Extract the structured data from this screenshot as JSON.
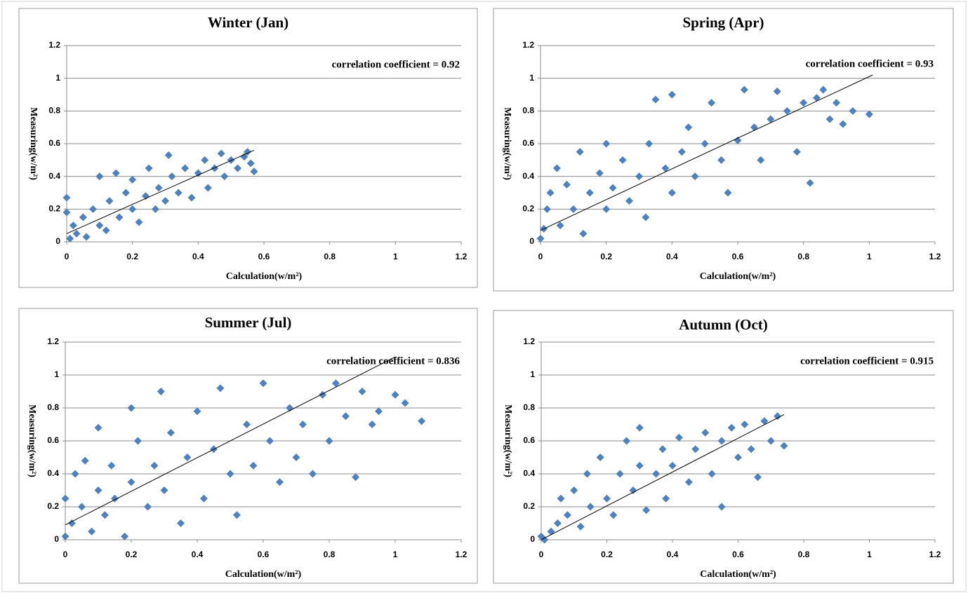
{
  "chart_data": [
    {
      "type": "scatter",
      "title": "Winter (Jan)",
      "xlabel": "Calculation(w/m²)",
      "ylabel": "Measuring(w/m²)",
      "annotation": "correlation coefficient = 0.92",
      "xlim": [
        0,
        1.2
      ],
      "ylim": [
        0,
        1.2
      ],
      "xticks": [
        0,
        0.2,
        0.4,
        0.6,
        0.8,
        1,
        1.2
      ],
      "yticks": [
        0,
        0.2,
        0.4,
        0.6,
        0.8,
        1,
        1.2
      ],
      "grid": true,
      "series": [
        {
          "color": "#4f81bd",
          "x": [
            0,
            0,
            0.01,
            0.02,
            0.03,
            0.05,
            0.06,
            0.08,
            0.1,
            0.1,
            0.12,
            0.13,
            0.15,
            0.16,
            0.18,
            0.2,
            0.2,
            0.22,
            0.24,
            0.25,
            0.27,
            0.28,
            0.3,
            0.31,
            0.32,
            0.34,
            0.36,
            0.38,
            0.4,
            0.42,
            0.43,
            0.45,
            0.47,
            0.48,
            0.5,
            0.52,
            0.54,
            0.56,
            0.57,
            0.55
          ],
          "values": [
            0.27,
            0.18,
            0.02,
            0.1,
            0.05,
            0.15,
            0.03,
            0.2,
            0.1,
            0.4,
            0.07,
            0.25,
            0.42,
            0.15,
            0.3,
            0.2,
            0.38,
            0.12,
            0.28,
            0.45,
            0.2,
            0.33,
            0.25,
            0.53,
            0.4,
            0.3,
            0.45,
            0.27,
            0.42,
            0.5,
            0.33,
            0.45,
            0.54,
            0.4,
            0.5,
            0.45,
            0.52,
            0.48,
            0.43,
            0.55
          ]
        }
      ],
      "trendline": {
        "color": "#000000",
        "x": [
          0,
          0.57
        ],
        "values": [
          0.05,
          0.56
        ]
      }
    },
    {
      "type": "scatter",
      "title": "Spring (Apr)",
      "xlabel": "Calculation(w/m²)",
      "ylabel": "Measuring(w/m²)",
      "annotation": "correlation coefficient = 0.93",
      "xlim": [
        0,
        1.2
      ],
      "ylim": [
        0,
        1.2
      ],
      "xticks": [
        0,
        0.2,
        0.4,
        0.6,
        0.8,
        1,
        1.2
      ],
      "yticks": [
        0,
        0.2,
        0.4,
        0.6,
        0.8,
        1,
        1.2
      ],
      "grid": true,
      "series": [
        {
          "color": "#4f81bd",
          "x": [
            0,
            0.01,
            0.02,
            0.03,
            0.05,
            0.06,
            0.08,
            0.1,
            0.12,
            0.13,
            0.15,
            0.18,
            0.2,
            0.2,
            0.22,
            0.25,
            0.27,
            0.3,
            0.32,
            0.33,
            0.35,
            0.38,
            0.4,
            0.4,
            0.43,
            0.45,
            0.47,
            0.5,
            0.52,
            0.55,
            0.57,
            0.6,
            0.62,
            0.65,
            0.67,
            0.7,
            0.72,
            0.75,
            0.78,
            0.8,
            0.82,
            0.84,
            0.86,
            0.88,
            0.9,
            0.92,
            0.95,
            1.0
          ],
          "values": [
            0.02,
            0.08,
            0.2,
            0.3,
            0.45,
            0.1,
            0.35,
            0.2,
            0.55,
            0.05,
            0.3,
            0.42,
            0.2,
            0.6,
            0.33,
            0.5,
            0.25,
            0.4,
            0.15,
            0.6,
            0.87,
            0.45,
            0.3,
            0.9,
            0.55,
            0.7,
            0.4,
            0.6,
            0.85,
            0.5,
            0.3,
            0.62,
            0.93,
            0.7,
            0.5,
            0.75,
            0.92,
            0.8,
            0.55,
            0.85,
            0.36,
            0.88,
            0.93,
            0.75,
            0.85,
            0.72,
            0.8,
            0.78
          ]
        }
      ],
      "trendline": {
        "color": "#000000",
        "x": [
          0,
          1.01
        ],
        "values": [
          0.07,
          1.02
        ]
      }
    },
    {
      "type": "scatter",
      "title": "Summer (Jul)",
      "xlabel": "Calculation(w/m²)",
      "ylabel": "Measuring(w/m²)",
      "annotation": "correlation coefficient = 0.836",
      "xlim": [
        0,
        1.2
      ],
      "ylim": [
        0,
        1.2
      ],
      "xticks": [
        0,
        0.2,
        0.4,
        0.6,
        0.8,
        1,
        1.2
      ],
      "yticks": [
        0,
        0.2,
        0.4,
        0.6,
        0.8,
        1,
        1.2
      ],
      "grid": true,
      "series": [
        {
          "color": "#4f81bd",
          "x": [
            0,
            0,
            0.02,
            0.03,
            0.05,
            0.06,
            0.08,
            0.1,
            0.1,
            0.12,
            0.14,
            0.15,
            0.18,
            0.2,
            0.2,
            0.22,
            0.25,
            0.27,
            0.29,
            0.3,
            0.32,
            0.35,
            0.37,
            0.4,
            0.42,
            0.45,
            0.47,
            0.5,
            0.52,
            0.55,
            0.57,
            0.6,
            0.62,
            0.65,
            0.68,
            0.7,
            0.72,
            0.75,
            0.78,
            0.8,
            0.82,
            0.85,
            0.88,
            0.9,
            0.93,
            0.95,
            1.0,
            1.03,
            1.08
          ],
          "values": [
            0.02,
            0.25,
            0.1,
            0.4,
            0.2,
            0.48,
            0.05,
            0.3,
            0.68,
            0.15,
            0.45,
            0.25,
            0.02,
            0.35,
            0.8,
            0.6,
            0.2,
            0.45,
            0.9,
            0.3,
            0.65,
            0.1,
            0.5,
            0.78,
            0.25,
            0.55,
            0.92,
            0.4,
            0.15,
            0.7,
            0.45,
            0.95,
            0.6,
            0.35,
            0.8,
            0.5,
            0.7,
            0.4,
            0.88,
            0.6,
            0.95,
            0.75,
            0.38,
            0.9,
            0.7,
            0.78,
            0.88,
            0.83,
            0.72
          ]
        }
      ],
      "trendline": {
        "color": "#000000",
        "x": [
          0,
          1.0
        ],
        "values": [
          0.09,
          1.11
        ]
      }
    },
    {
      "type": "scatter",
      "title": "Autumn (Oct)",
      "xlabel": "Calculation(w/m²)",
      "ylabel": "Measuring(w/m²)",
      "annotation": "correlation coefficient = 0.915",
      "xlim": [
        0,
        1.2
      ],
      "ylim": [
        0,
        1.2
      ],
      "xticks": [
        0,
        0.2,
        0.4,
        0.6,
        0.8,
        1,
        1.2
      ],
      "yticks": [
        0,
        0.2,
        0.4,
        0.6,
        0.8,
        1,
        1.2
      ],
      "grid": true,
      "series": [
        {
          "color": "#4f81bd",
          "x": [
            0,
            0.01,
            0.03,
            0.05,
            0.06,
            0.08,
            0.1,
            0.12,
            0.14,
            0.15,
            0.18,
            0.2,
            0.22,
            0.24,
            0.26,
            0.28,
            0.3,
            0.3,
            0.32,
            0.35,
            0.37,
            0.38,
            0.4,
            0.42,
            0.45,
            0.47,
            0.5,
            0.52,
            0.55,
            0.55,
            0.58,
            0.6,
            0.62,
            0.64,
            0.66,
            0.68,
            0.7,
            0.72,
            0.74
          ],
          "values": [
            0.02,
            0,
            0.05,
            0.1,
            0.25,
            0.15,
            0.3,
            0.08,
            0.4,
            0.2,
            0.5,
            0.25,
            0.15,
            0.4,
            0.6,
            0.3,
            0.45,
            0.68,
            0.18,
            0.4,
            0.55,
            0.25,
            0.45,
            0.62,
            0.35,
            0.55,
            0.65,
            0.4,
            0.2,
            0.6,
            0.68,
            0.5,
            0.7,
            0.55,
            0.38,
            0.72,
            0.6,
            0.75,
            0.57
          ]
        }
      ],
      "trendline": {
        "color": "#000000",
        "x": [
          0,
          0.74
        ],
        "values": [
          0,
          0.76
        ]
      }
    }
  ]
}
